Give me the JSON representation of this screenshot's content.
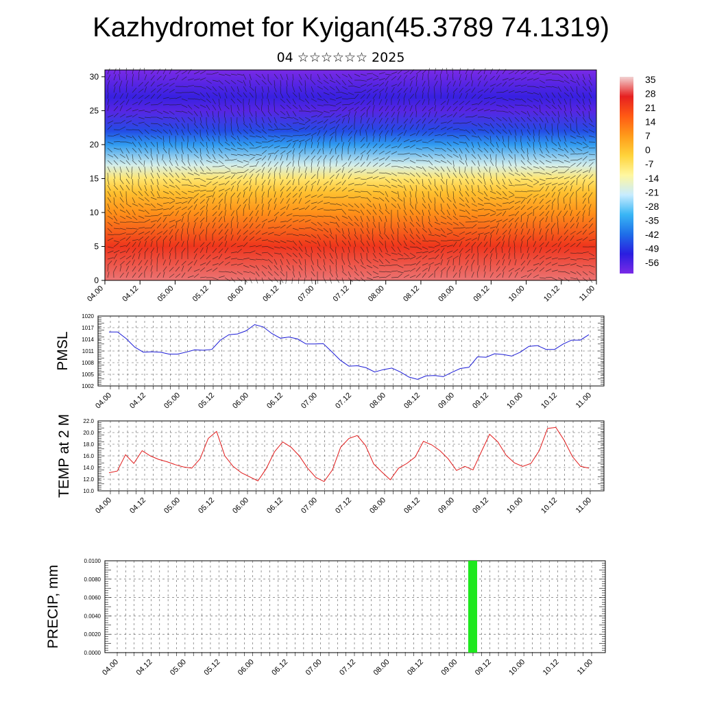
{
  "title": "Kazhydromet for Kyigan(45.3789 74.1319)",
  "subtitle": "04 ☆☆☆☆☆☆ 2025",
  "chart_data": [
    {
      "type": "heatmap",
      "name": "cross-section",
      "y_ticks": [
        "0",
        "5",
        "10",
        "15",
        "20",
        "25",
        "30"
      ],
      "ylim": [
        0,
        31
      ],
      "x_ticks": [
        "04.00",
        "04.12",
        "05.00",
        "05.12",
        "06.00",
        "06.12",
        "07.00",
        "07.12",
        "08.00",
        "08.12",
        "09.00",
        "09.12",
        "10.00",
        "10.12",
        "11.00"
      ],
      "colorbar_labels": [
        "35",
        "28",
        "21",
        "14",
        "7",
        "0",
        "-7",
        "-14",
        "-21",
        "-28",
        "-35",
        "-42",
        "-49",
        "-56"
      ],
      "colorbar_colors": [
        "#f2d2d2",
        "#e62020",
        "#ff5a14",
        "#ff9b1a",
        "#ffd33a",
        "#fff7a0",
        "#c8ecff",
        "#39b6f5",
        "#1e6ee8",
        "#2a1ee0",
        "#7a2ae6"
      ],
      "temperature_profile": [
        {
          "height": 0,
          "value": 30
        },
        {
          "height": 5,
          "value": 22
        },
        {
          "height": 10,
          "value": 8
        },
        {
          "height": 13,
          "value": 0
        },
        {
          "height": 15,
          "value": -8
        },
        {
          "height": 17,
          "value": -20
        },
        {
          "height": 20,
          "value": -35
        },
        {
          "height": 22,
          "value": -45
        },
        {
          "height": 25,
          "value": -56
        },
        {
          "height": 27,
          "value": -52
        },
        {
          "height": 31,
          "value": -60
        }
      ]
    },
    {
      "type": "line",
      "ylabel": "PMSL",
      "color": "#1a1ad6",
      "y_ticks": [
        "1020",
        "1017",
        "1014",
        "1011",
        "1008",
        "1005",
        "1002"
      ],
      "ylim": [
        1002,
        1020
      ],
      "x_ticks": [
        "04.00",
        "04.12",
        "05.00",
        "05.12",
        "06.00",
        "06.12",
        "07.00",
        "07.12",
        "08.00",
        "08.12",
        "09.00",
        "09.12",
        "10.00",
        "10.12",
        "11.00"
      ],
      "values": [
        1015.9,
        1015.9,
        1014.2,
        1012.0,
        1010.7,
        1010.8,
        1010.7,
        1010.2,
        1010.2,
        1010.7,
        1011.3,
        1011.2,
        1011.4,
        1013.8,
        1015.2,
        1015.4,
        1016.2,
        1017.8,
        1017.2,
        1015.5,
        1014.3,
        1014.6,
        1014.1,
        1012.8,
        1012.8,
        1012.9,
        1010.8,
        1008.6,
        1007.1,
        1007.2,
        1006.7,
        1005.6,
        1006.2,
        1006.6,
        1005.6,
        1004.3,
        1003.7,
        1004.6,
        1004.7,
        1004.4,
        1005.5,
        1006.5,
        1006.8,
        1009.5,
        1009.4,
        1010.3,
        1010.1,
        1009.7,
        1010.7,
        1012.2,
        1012.4,
        1011.4,
        1011.4,
        1012.8,
        1013.8,
        1013.8,
        1015.2
      ]
    },
    {
      "type": "line",
      "ylabel": "TEMP at 2 M",
      "color": "#e01818",
      "y_ticks": [
        "22.0",
        "20.0",
        "18.0",
        "16.0",
        "14.0",
        "12.0",
        "10.0"
      ],
      "ylim": [
        10,
        22
      ],
      "x_ticks": [
        "04.00",
        "04.12",
        "05.00",
        "05.12",
        "06.00",
        "06.12",
        "07.00",
        "07.12",
        "08.00",
        "08.12",
        "09.00",
        "09.12",
        "10.00",
        "10.12",
        "11.00"
      ],
      "values": [
        13.1,
        13.4,
        16.2,
        14.7,
        16.9,
        16.0,
        15.4,
        15.0,
        14.5,
        14.1,
        13.9,
        15.5,
        19.0,
        20.2,
        16.0,
        14.2,
        13.1,
        12.4,
        11.7,
        13.8,
        16.7,
        18.4,
        17.5,
        16.0,
        13.9,
        12.3,
        11.6,
        13.6,
        17.5,
        19.0,
        19.5,
        17.8,
        14.6,
        13.2,
        11.9,
        13.9,
        14.7,
        15.8,
        18.5,
        17.9,
        16.9,
        15.5,
        13.5,
        14.2,
        13.6,
        16.7,
        19.7,
        18.4,
        16.1,
        14.8,
        14.2,
        14.7,
        16.9,
        20.7,
        20.9,
        18.7,
        15.9,
        14.2,
        13.9
      ]
    },
    {
      "type": "bar",
      "ylabel": "PRECIP, mm",
      "color": "#1ee81e",
      "y_ticks": [
        "0.0100",
        "0.0080",
        "0.0060",
        "0.0040",
        "0.0020",
        "0.0000"
      ],
      "ylim": [
        0,
        0.01
      ],
      "x_ticks": [
        "04.00",
        "04.12",
        "05.00",
        "05.12",
        "06.00",
        "06.12",
        "07.00",
        "07.12",
        "08.00",
        "08.12",
        "09.00",
        "09.12",
        "10.00",
        "10.12",
        "11.00"
      ],
      "bars": [
        {
          "at": "09.06",
          "value": 0.01
        }
      ]
    }
  ]
}
